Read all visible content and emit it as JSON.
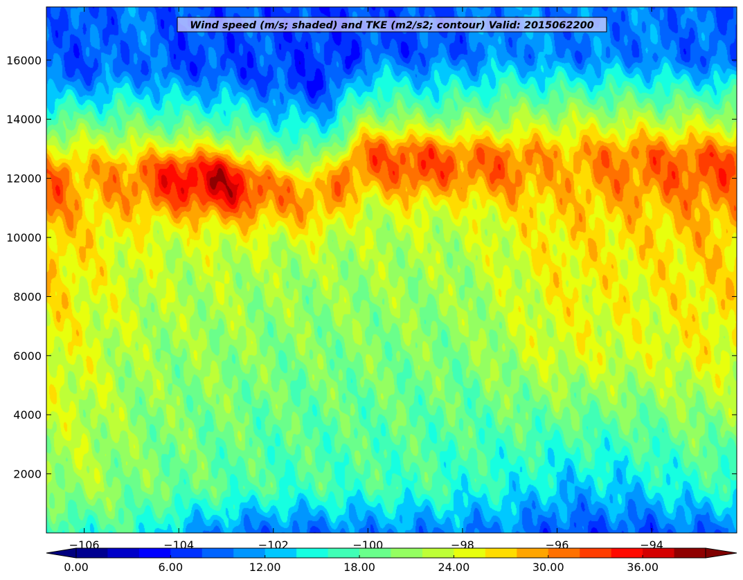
{
  "chart_data": {
    "type": "heatmap",
    "title": "Wind speed (m/s; shaded) and TKE (m2/s2; contour) Valid: 2015062200",
    "xlabel": "",
    "ylabel": "",
    "xlim": [
      -106.8,
      -92.2
    ],
    "ylim": [
      0,
      17800
    ],
    "x_ticks": [
      -106,
      -104,
      -102,
      -100,
      -98,
      -96,
      -94
    ],
    "x_tick_labels": [
      "−106",
      "−104",
      "−102",
      "−100",
      "−98",
      "−96",
      "−94"
    ],
    "y_ticks": [
      2000,
      4000,
      6000,
      8000,
      10000,
      12000,
      14000,
      16000
    ],
    "y_tick_labels": [
      "2000",
      "4000",
      "6000",
      "8000",
      "10000",
      "12000",
      "14000",
      "16000"
    ],
    "colorbar": {
      "levels": [
        0,
        2,
        4,
        6,
        8,
        10,
        12,
        14,
        16,
        18,
        20,
        22,
        24,
        26,
        28,
        30,
        32,
        34,
        36,
        38,
        40
      ],
      "tick_values": [
        0,
        6,
        12,
        18,
        24,
        30,
        36
      ],
      "tick_labels": [
        "0.00",
        "6.00",
        "12.00",
        "18.00",
        "24.00",
        "30.00",
        "36.00"
      ],
      "extend": "both",
      "colormap": "jet",
      "colors": [
        "#000090",
        "#0000c8",
        "#0000ff",
        "#0032ff",
        "#0064ff",
        "#0096ff",
        "#00c8ff",
        "#16ffe1",
        "#40ffb6",
        "#6aff8b",
        "#94ff61",
        "#beff37",
        "#e8ff0d",
        "#ffdc00",
        "#ffa500",
        "#ff7100",
        "#ff3d00",
        "#ff0a00",
        "#d40000",
        "#8f0000"
      ]
    },
    "grid": false,
    "profile_by_longitude": [
      {
        "x": -106.5,
        "surface": 16,
        "low": 21,
        "mid": 25,
        "jet_level": 11600,
        "jet_max": 31,
        "top": 9
      },
      {
        "x": -106.0,
        "surface": 16,
        "low": 22,
        "mid": 24,
        "jet_level": 11800,
        "jet_max": 28,
        "top": 8
      },
      {
        "x": -105.0,
        "surface": 17,
        "low": 20,
        "mid": 22,
        "jet_level": 11800,
        "jet_max": 30,
        "top": 10
      },
      {
        "x": -104.0,
        "surface": 12,
        "low": 19,
        "mid": 21,
        "jet_level": 11900,
        "jet_max": 35,
        "top": 8
      },
      {
        "x": -103.0,
        "surface": 10,
        "low": 18,
        "mid": 21,
        "jet_level": 11800,
        "jet_max": 37,
        "top": 8
      },
      {
        "x": -102.0,
        "surface": 9,
        "low": 17,
        "mid": 20,
        "jet_level": 11400,
        "jet_max": 30,
        "top": 8
      },
      {
        "x": -101.0,
        "surface": 9,
        "low": 17,
        "mid": 20,
        "jet_level": 11200,
        "jet_max": 29,
        "top": 7
      },
      {
        "x": -100.0,
        "surface": 10,
        "low": 17,
        "mid": 20,
        "jet_level": 12600,
        "jet_max": 31,
        "top": 8
      },
      {
        "x": -99.0,
        "surface": 10,
        "low": 17,
        "mid": 20,
        "jet_level": 12400,
        "jet_max": 33,
        "top": 8
      },
      {
        "x": -98.0,
        "surface": 10,
        "low": 16,
        "mid": 20,
        "jet_level": 12400,
        "jet_max": 31,
        "top": 9
      },
      {
        "x": -97.0,
        "surface": 10,
        "low": 15,
        "mid": 22,
        "jet_level": 12300,
        "jet_max": 31,
        "top": 11
      },
      {
        "x": -96.0,
        "surface": 8,
        "low": 13,
        "mid": 24,
        "jet_level": 12300,
        "jet_max": 28,
        "top": 10
      },
      {
        "x": -95.0,
        "surface": 8,
        "low": 13,
        "mid": 24,
        "jet_level": 12300,
        "jet_max": 30,
        "top": 10
      },
      {
        "x": -94.0,
        "surface": 8,
        "low": 14,
        "mid": 24,
        "jet_level": 12300,
        "jet_max": 31,
        "top": 10
      },
      {
        "x": -93.0,
        "surface": 9,
        "low": 16,
        "mid": 25,
        "jet_level": 12200,
        "jet_max": 32,
        "top": 9
      }
    ]
  }
}
